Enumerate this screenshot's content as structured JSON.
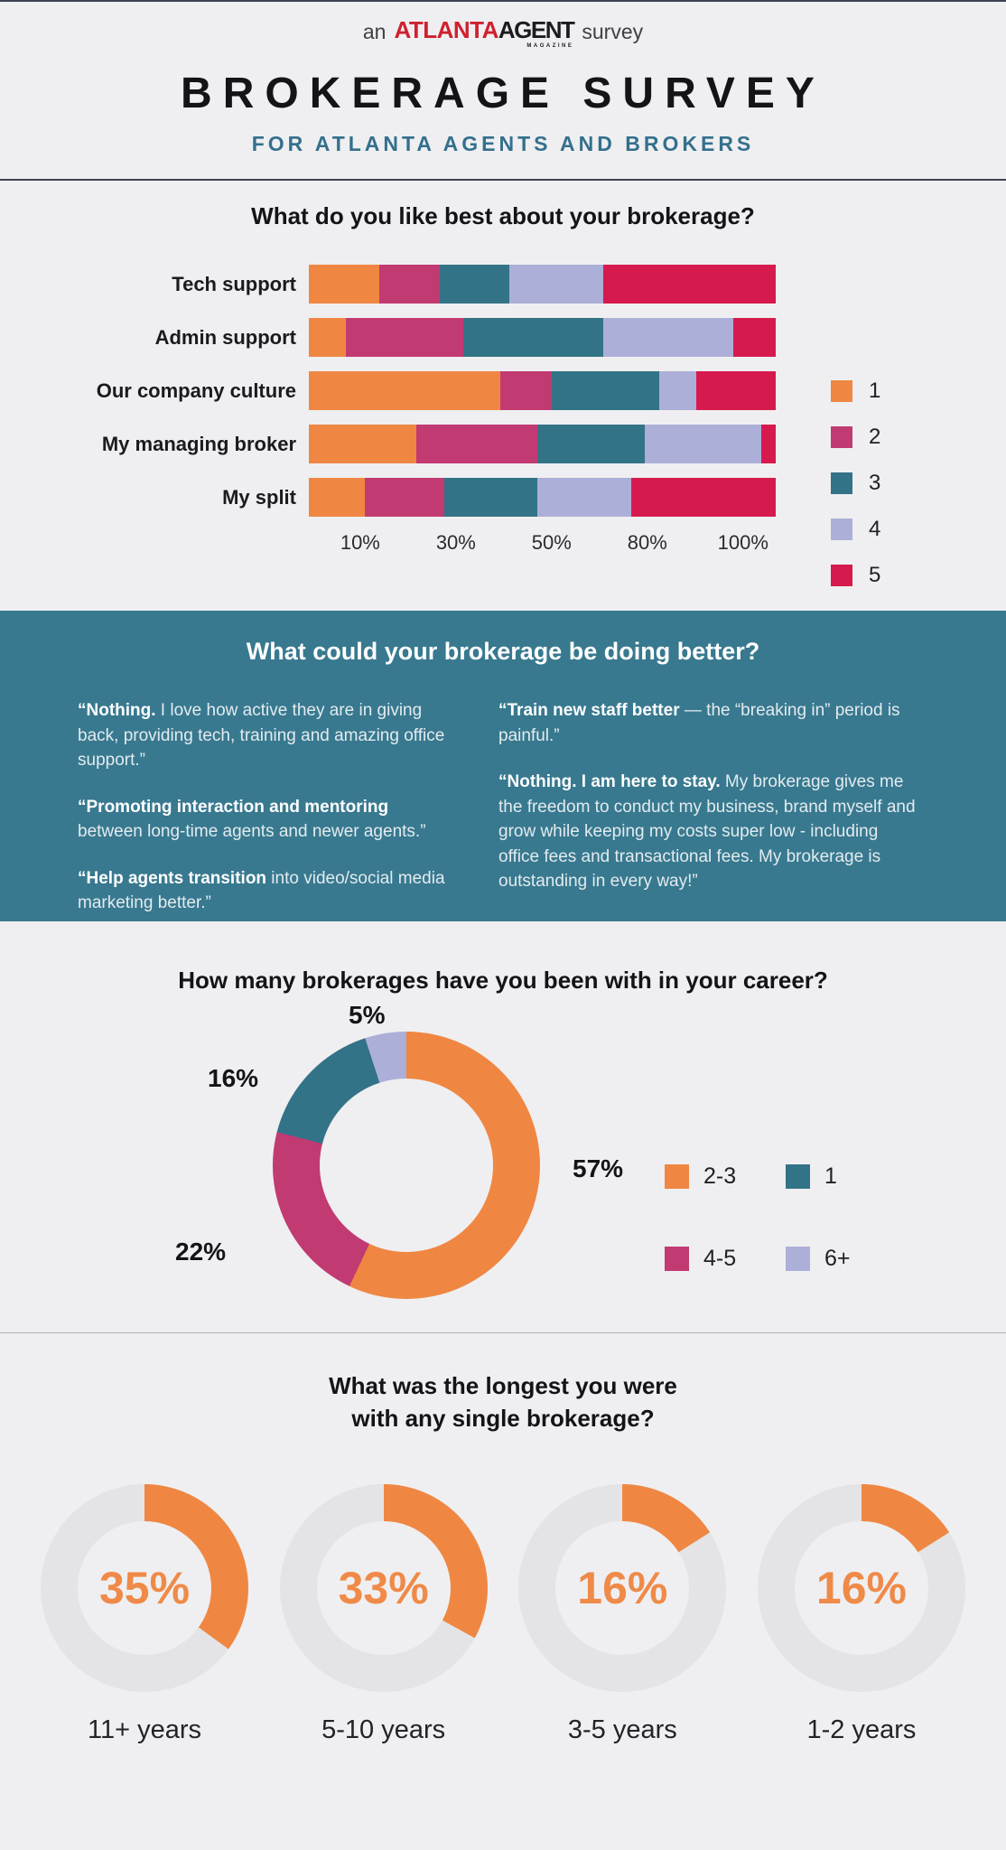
{
  "header": {
    "logo": {
      "prefix": "an",
      "brand_red": "ATLANTA",
      "brand_black": "AGENT",
      "brand_tagline": "MAGAZINE",
      "suffix": "survey"
    },
    "title": "BROKERAGE SURVEY",
    "subtitle": "FOR ATLANTA AGENTS AND BROKERS"
  },
  "colors": {
    "page_bg": "#EFEFF1",
    "accent_orange": "#EF8743",
    "accent_magenta": "#C23A72",
    "accent_teal": "#337387",
    "accent_periwinkle": "#ACAFD8",
    "accent_crimson": "#D71A4E",
    "teal_band_bg": "#38798F",
    "logo_red": "#CE212F",
    "subtitle_teal": "#34708D",
    "gauge_track_gray": "#E4E4E6"
  },
  "sections": {
    "likes": {
      "title": "What do you like best about your brokerage?"
    },
    "better": {
      "title": "What could your brokerage be doing better?",
      "quotes_left": [
        {
          "lead": "“Nothing.",
          "rest": " I love how active they are in giving back, providing tech, training and amazing office support.”"
        },
        {
          "lead": "“Promoting interaction and mentoring",
          "rest": " between long-time agents and newer agents.”"
        },
        {
          "lead": "“Help agents transition",
          "rest": " into video/social media marketing better.”"
        }
      ],
      "quotes_right": [
        {
          "lead": "“Train new staff better",
          "rest": " — the “breaking in” period is painful.”"
        },
        {
          "lead": "“Nothing. I am here to stay.",
          "rest": " My brokerage gives me the freedom to conduct my business, brand myself and grow while keeping my costs super low - including office fees and transactional fees. My brokerage is outstanding in every way!”"
        }
      ]
    },
    "career": {
      "title": "How many brokerages have you been with in your career?"
    },
    "longest": {
      "title_line1": "What was the longest you were",
      "title_line2": "with any single brokerage?"
    }
  },
  "chart_data": [
    {
      "type": "bar",
      "orientation": "horizontal",
      "stacked": true,
      "stack_total": 100,
      "title": "What do you like best about your brokerage?",
      "categories": [
        "Tech support",
        "Admin support",
        "Our company culture",
        "My managing broker",
        "My split"
      ],
      "series": [
        {
          "name": "1",
          "color": "#EF8743",
          "values": [
            15,
            8,
            41,
            23,
            12
          ]
        },
        {
          "name": "2",
          "color": "#C23A72",
          "values": [
            13,
            25,
            11,
            26,
            17
          ]
        },
        {
          "name": "3",
          "color": "#337387",
          "values": [
            15,
            30,
            23,
            23,
            20
          ]
        },
        {
          "name": "4",
          "color": "#ACAFD8",
          "values": [
            20,
            28,
            8,
            25,
            20
          ]
        },
        {
          "name": "5",
          "color": "#D71A4E",
          "values": [
            37,
            9,
            17,
            3,
            31
          ]
        }
      ],
      "x_tick_labels": [
        "10%",
        "30%",
        "50%",
        "80%",
        "100%"
      ],
      "legend_position": "right",
      "grid": false
    },
    {
      "type": "pie",
      "donut": true,
      "title": "How many brokerages have you been with in your career?",
      "slices": [
        {
          "label": "2-3",
          "value": 57,
          "color": "#EF8743",
          "pct_label_pos": "right"
        },
        {
          "label": "4-5",
          "value": 22,
          "color": "#C23A72",
          "pct_label_pos": "lower-left"
        },
        {
          "label": "1",
          "value": 16,
          "color": "#337387",
          "pct_label_pos": "upper-left"
        },
        {
          "label": "6+",
          "value": 5,
          "color": "#ACAFD8",
          "pct_label_pos": "top"
        }
      ],
      "start_angle_deg": 0,
      "direction": "clockwise",
      "legend_order": [
        "2-3",
        "1",
        "4-5",
        "6+"
      ],
      "legend_position": "right"
    },
    {
      "type": "donut-gauge-row",
      "title": "What was the longest you were with any single brokerage?",
      "items": [
        {
          "label": "11+ years",
          "value": 35
        },
        {
          "label": "5-10 years",
          "value": 33
        },
        {
          "label": "3-5 years",
          "value": 16
        },
        {
          "label": "1-2 years",
          "value": 16
        }
      ],
      "fill_color": "#EF8743",
      "track_color": "#E4E4E6",
      "value_suffix": "%"
    }
  ]
}
